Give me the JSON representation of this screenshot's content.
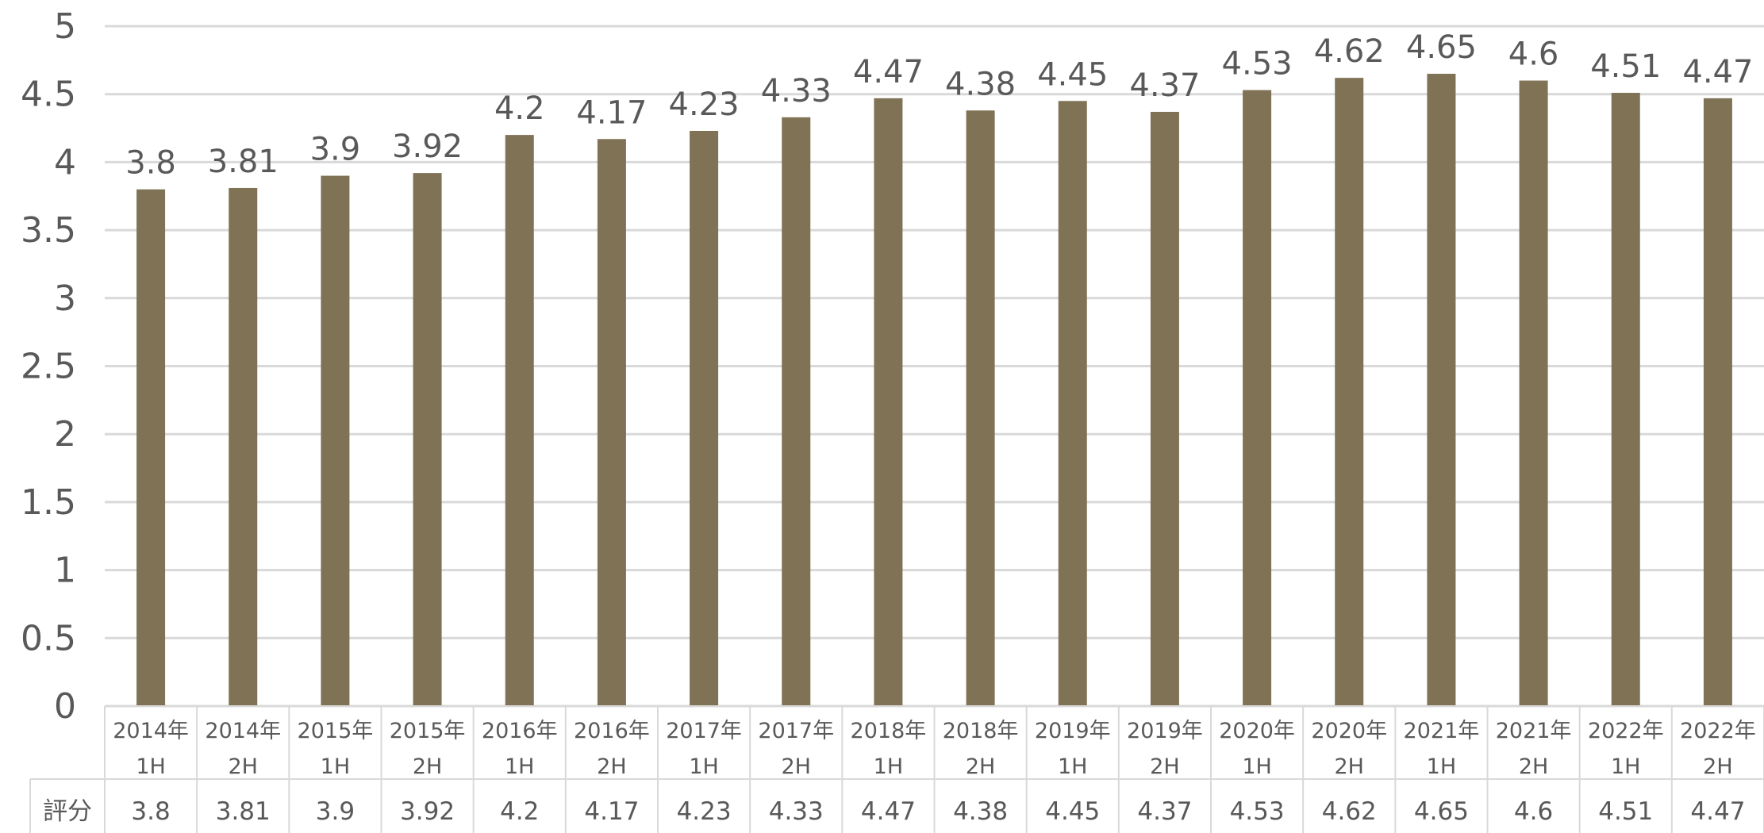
{
  "chart_data": {
    "type": "bar",
    "title": "",
    "xlabel": "",
    "ylabel": "",
    "ylim": [
      0,
      5
    ],
    "yticks": [
      "0",
      "0.5",
      "1",
      "1.5",
      "2",
      "2.5",
      "3",
      "3.5",
      "4",
      "4.5",
      "5"
    ],
    "grid": true,
    "bar_color": "#7f7255",
    "categories": [
      [
        "2014年",
        "1H"
      ],
      [
        "2014年",
        "2H"
      ],
      [
        "2015年",
        "1H"
      ],
      [
        "2015年",
        "2H"
      ],
      [
        "2016年",
        "1H"
      ],
      [
        "2016年",
        "2H"
      ],
      [
        "2017年",
        "1H"
      ],
      [
        "2017年",
        "2H"
      ],
      [
        "2018年",
        "1H"
      ],
      [
        "2018年",
        "2H"
      ],
      [
        "2019年",
        "1H"
      ],
      [
        "2019年",
        "2H"
      ],
      [
        "2020年",
        "1H"
      ],
      [
        "2020年",
        "2H"
      ],
      [
        "2021年",
        "1H"
      ],
      [
        "2021年",
        "2H"
      ],
      [
        "2022年",
        "1H"
      ],
      [
        "2022年",
        "2H"
      ]
    ],
    "series": [
      {
        "name": "評分",
        "values": [
          3.8,
          3.81,
          3.9,
          3.92,
          4.2,
          4.17,
          4.23,
          4.33,
          4.47,
          4.38,
          4.45,
          4.37,
          4.53,
          4.62,
          4.65,
          4.6,
          4.51,
          4.47
        ]
      }
    ],
    "data_table": true
  }
}
